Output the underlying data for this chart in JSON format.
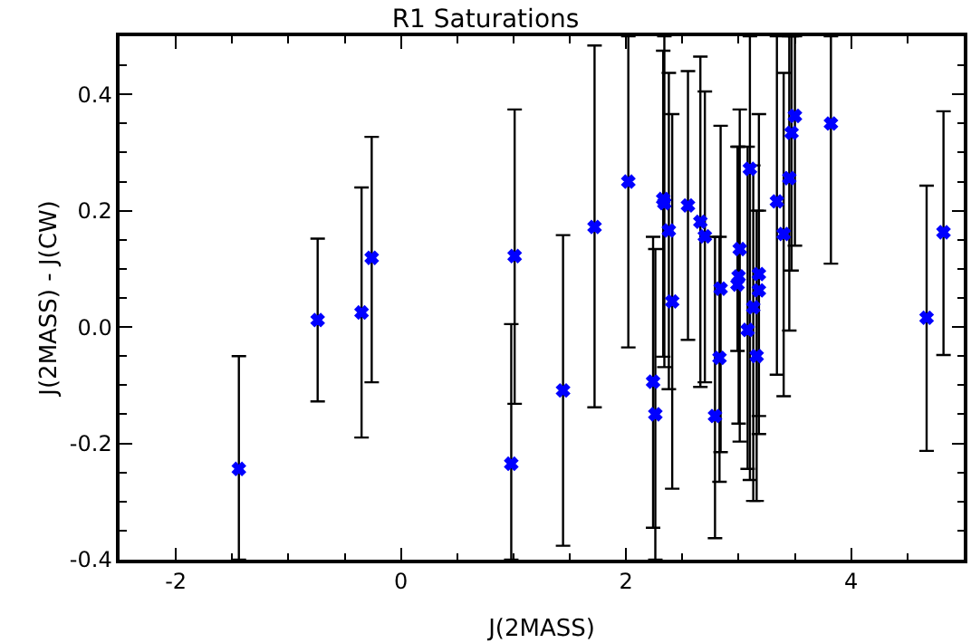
{
  "chart_data": {
    "type": "scatter",
    "title": "R1 Saturations",
    "xlabel": "J(2MASS)",
    "ylabel": "J(2MASS) - J(CW)",
    "x": [
      -1.44,
      -0.74,
      -0.35,
      -0.26,
      1.01,
      0.98,
      1.44,
      1.72,
      2.02,
      2.24,
      2.26,
      2.33,
      2.34,
      2.38,
      2.41,
      2.55,
      2.66,
      2.7,
      2.79,
      2.83,
      2.84,
      3.01,
      3.0,
      2.99,
      3.1,
      3.08,
      3.13,
      3.18,
      3.18,
      3.16,
      3.34,
      3.4,
      3.47,
      3.45,
      3.5,
      3.82,
      4.67,
      4.82
    ],
    "series": [
      {
        "color": "#0000ff",
        "values": [
          -0.244,
          0.012,
          0.025,
          0.119,
          0.122,
          -0.235,
          -0.109,
          0.172,
          0.25,
          -0.094,
          -0.15,
          0.22,
          0.213,
          0.166,
          0.044,
          0.209,
          0.181,
          0.156,
          -0.153,
          -0.053,
          0.066,
          0.134,
          0.087,
          0.073,
          0.272,
          -0.005,
          0.034,
          0.091,
          0.063,
          -0.05,
          0.216,
          0.16,
          0.334,
          0.256,
          0.363,
          0.35,
          0.016,
          0.163
        ],
        "errors": [
          [
            -0.4,
            -0.05
          ],
          [
            -0.128,
            0.152
          ],
          [
            -0.19,
            0.24
          ],
          [
            -0.095,
            0.327
          ],
          [
            -0.132,
            0.374
          ],
          [
            -0.4,
            0.005
          ],
          [
            -0.376,
            0.158
          ],
          [
            -0.138,
            0.484
          ],
          [
            -0.035,
            0.5
          ],
          [
            -0.345,
            0.155
          ],
          [
            -0.4,
            0.134
          ],
          [
            -0.051,
            0.475
          ],
          [
            -0.069,
            0.5
          ],
          [
            -0.107,
            0.437
          ],
          [
            -0.278,
            0.366
          ],
          [
            -0.022,
            0.44
          ],
          [
            -0.103,
            0.465
          ],
          [
            -0.095,
            0.405
          ],
          [
            -0.363,
            0.155
          ],
          [
            -0.266,
            0.155
          ],
          [
            -0.215,
            0.346
          ],
          [
            -0.197,
            0.374
          ],
          [
            -0.166,
            0.31
          ],
          [
            -0.041,
            0.31
          ],
          [
            -0.263,
            0.5
          ],
          [
            -0.244,
            0.31
          ],
          [
            -0.299,
            0.278
          ],
          [
            -0.184,
            0.366
          ],
          [
            -0.153,
            0.2
          ],
          [
            -0.299,
            0.2
          ],
          [
            -0.082,
            0.5
          ],
          [
            -0.119,
            0.437
          ],
          [
            0.097,
            0.5
          ],
          [
            -0.006,
            0.5
          ],
          [
            0.14,
            0.5
          ],
          [
            0.109,
            0.5
          ],
          [
            -0.213,
            0.243
          ],
          [
            -0.048,
            0.371
          ]
        ]
      }
    ],
    "xlim": [
      -2.5,
      5.0
    ],
    "ylim": [
      -0.4,
      0.5
    ],
    "xticks": [
      -2,
      0,
      2,
      4
    ],
    "yticks": [
      {
        "value": -0.4,
        "label": "-0.4"
      },
      {
        "value": -0.2,
        "label": "-0.2"
      },
      {
        "value": 0,
        "label": "0.0"
      },
      {
        "value": 0.2,
        "label": "0.2"
      },
      {
        "value": 0.4,
        "label": "0.4"
      }
    ],
    "marker": "cross"
  }
}
